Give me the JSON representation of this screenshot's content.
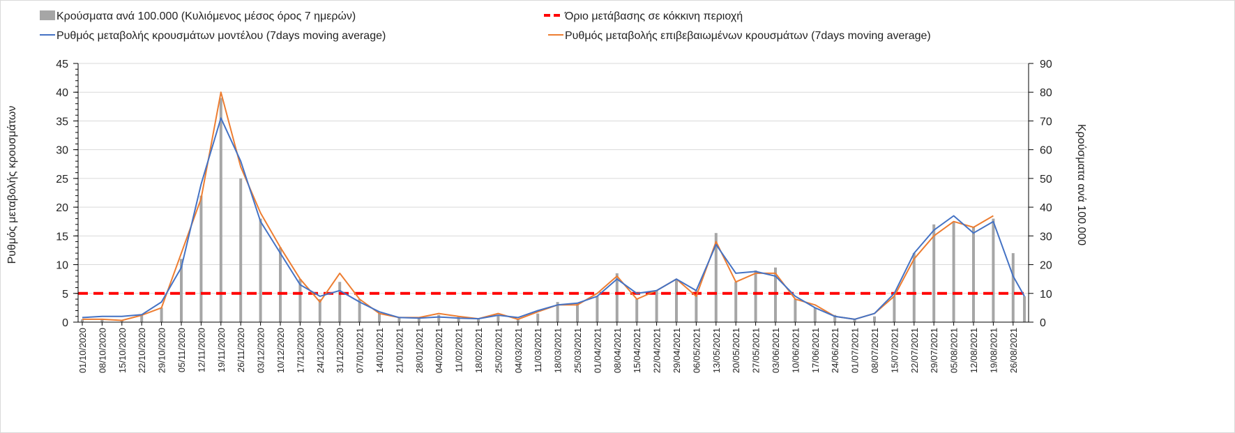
{
  "chart_data": {
    "type": "bar+line",
    "legend": {
      "bars": "Κρούσματα ανά 100.000 (Κυλιόμενος μέσος όρος 7 ημερών)",
      "threshold": "Όριο μετάβασης σε κόκκινη περιοχή",
      "model": "Ρυθμός μεταβολής κρουσμάτων μοντέλου (7days moving average)",
      "confirmed": "Ρυθμός μεταβολής επιβεβαιωμένων κρουσμάτων (7days moving average)"
    },
    "ylabel_left": "Ρυθμός μεταβολής κρουσμάτων",
    "ylabel_right": "Κρούσματα ανά 100.000",
    "ylim_left": [
      0,
      45
    ],
    "ylim_right": [
      0,
      90
    ],
    "yticks_left": [
      "0",
      "5",
      "10",
      "15",
      "20",
      "25",
      "30",
      "35",
      "40",
      "45"
    ],
    "yticks_right": [
      "0",
      "10",
      "20",
      "30",
      "40",
      "50",
      "60",
      "70",
      "80",
      "90"
    ],
    "threshold_value": 5,
    "colors": {
      "bars": "#a6a6a6",
      "model": "#4472c4",
      "confirmed": "#ed7d31",
      "threshold": "#ff0000",
      "grid": "#d9d9d9"
    },
    "x_days": [
      0,
      7,
      14,
      21,
      28,
      35,
      42,
      49,
      56,
      63,
      70,
      77,
      84,
      91,
      98,
      105,
      112,
      119,
      126,
      133,
      140,
      147,
      154,
      161,
      168,
      175,
      182,
      189,
      196,
      203,
      210,
      217,
      224,
      231,
      238,
      245,
      252,
      259,
      266,
      273,
      280,
      287,
      294,
      301,
      308,
      315,
      322,
      329,
      333
    ],
    "xtick_labels": [
      "01/10/2020",
      "08/10/2020",
      "15/10/2020",
      "22/10/2020",
      "29/10/2020",
      "05/11/2020",
      "12/11/2020",
      "19/11/2020",
      "26/11/2020",
      "03/12/2020",
      "10/12/2020",
      "17/12/2020",
      "24/12/2020",
      "31/12/2020",
      "07/01/2021",
      "14/01/2021",
      "21/01/2021",
      "28/01/2021",
      "04/02/2021",
      "11/02/2021",
      "18/02/2021",
      "25/02/2021",
      "04/03/2021",
      "11/03/2021",
      "18/03/2021",
      "25/03/2021",
      "01/04/2021",
      "08/04/2021",
      "15/04/2021",
      "22/04/2021",
      "29/04/2021",
      "06/05/2021",
      "13/05/2021",
      "20/05/2021",
      "27/05/2021",
      "03/06/2021",
      "10/06/2021",
      "17/06/2021",
      "24/06/2021",
      "01/07/2021",
      "08/07/2021",
      "15/07/2021",
      "22/07/2021",
      "29/07/2021",
      "05/08/2021",
      "12/08/2021",
      "19/08/2021",
      "26/08/2021"
    ],
    "series": [
      {
        "name": "cases_per_100k",
        "axis": "right",
        "type": "bar",
        "values": [
          1,
          1,
          0.6,
          2.5,
          5,
          22,
          44,
          78,
          50,
          36,
          26,
          15,
          8,
          14,
          8,
          3,
          1.5,
          1.5,
          2.5,
          2,
          1,
          2.5,
          1,
          3,
          7,
          6.5,
          9,
          17,
          8,
          11,
          15,
          11,
          31,
          14,
          18,
          19,
          8,
          5,
          2.5,
          1,
          2,
          9,
          24,
          34,
          35,
          33,
          36,
          24,
          9
        ]
      },
      {
        "name": "model_rate",
        "axis": "left",
        "type": "line",
        "values": [
          0.8,
          1.0,
          1.0,
          1.3,
          3.5,
          9.5,
          24,
          35.5,
          28,
          17.5,
          12,
          6.5,
          4.5,
          5.5,
          3.5,
          1.8,
          0.8,
          0.7,
          0.9,
          0.7,
          0.6,
          1.2,
          0.8,
          2.0,
          3.0,
          3.3,
          4.5,
          7.5,
          5,
          5.5,
          7.5,
          5.5,
          13.5,
          8.5,
          8.8,
          8,
          4.5,
          2.5,
          1.0,
          0.5,
          1.5,
          5.0,
          12,
          16,
          18.5,
          15.5,
          17.5,
          8,
          4.5
        ]
      },
      {
        "name": "confirmed_rate",
        "axis": "left",
        "type": "line",
        "values": [
          0.5,
          0.5,
          0.3,
          1.2,
          2.5,
          12,
          21.5,
          40,
          27,
          19,
          13,
          7.5,
          3.5,
          8.5,
          4,
          1.5,
          0.8,
          0.8,
          1.5,
          1.0,
          0.6,
          1.5,
          0.5,
          1.8,
          3.0,
          3.0,
          5.0,
          8.0,
          4.0,
          5.5,
          7.5,
          4.5,
          14,
          7,
          8.5,
          8.5,
          4,
          3,
          1,
          0.5,
          1.5,
          4.5,
          11,
          15,
          17.5,
          16.5,
          18.5,
          null,
          null
        ]
      }
    ]
  }
}
